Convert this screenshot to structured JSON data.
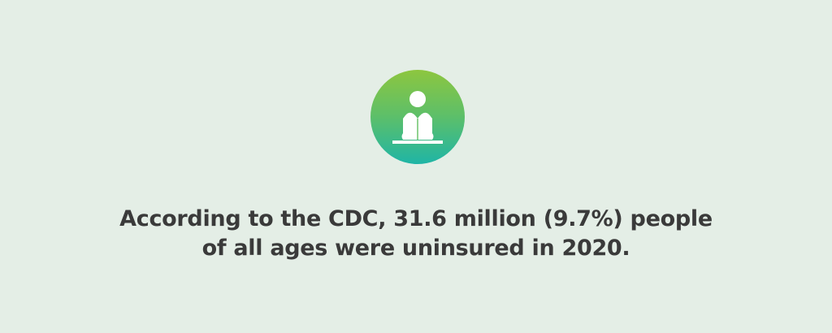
{
  "icon": {
    "name": "person-reading-book-icon",
    "gradient": [
      "#8dc63f",
      "#1fb5a6"
    ]
  },
  "statement": {
    "line1": "According to the CDC, 31.6 million (9.7%) people",
    "line2": "of all ages were uninsured in 2020."
  },
  "colors": {
    "background": "#e4eee6",
    "text": "#3a3a3a"
  }
}
